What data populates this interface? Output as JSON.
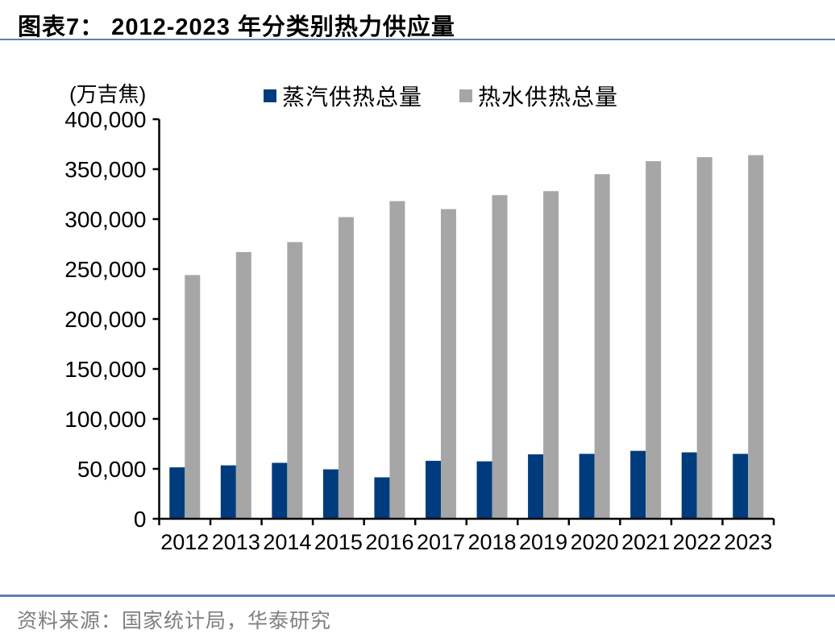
{
  "header": {
    "title": "图表7： 2012-2023 年分类别热力供应量"
  },
  "footer": {
    "source": "资料来源：国家统计局，华泰研究"
  },
  "colors": {
    "steam_bar": "#003C7D",
    "hot_water_bar": "#A6A6A6",
    "divider_blue": "#5E81B0",
    "source_text": "#7F7F7F",
    "axis": "#000000"
  },
  "chart_data": {
    "type": "bar",
    "title": "2012-2023 年分类别热力供应量",
    "unit": "(万吉焦)",
    "xlabel": "",
    "ylabel": "(万吉焦)",
    "categories": [
      "2012",
      "2013",
      "2014",
      "2015",
      "2016",
      "2017",
      "2018",
      "2019",
      "2020",
      "2021",
      "2022",
      "2023"
    ],
    "series": [
      {
        "name": "蒸汽供热总量",
        "color": "#003C7D",
        "values": [
          51500,
          53500,
          56000,
          49500,
          41500,
          58000,
          57500,
          64500,
          65000,
          68000,
          66500,
          65000
        ]
      },
      {
        "name": "热水供热总量",
        "color": "#A6A6A6",
        "values": [
          244000,
          267000,
          277000,
          302000,
          318000,
          310000,
          324000,
          328000,
          345000,
          358000,
          362000,
          364000
        ]
      }
    ],
    "ylim": [
      0,
      400000
    ],
    "ytick_interval": 50000,
    "ytick_labels": [
      "0",
      "50,000",
      "100,000",
      "150,000",
      "200,000",
      "250,000",
      "300,000",
      "350,000",
      "400,000"
    ],
    "grid": false,
    "legend_position": "top"
  }
}
